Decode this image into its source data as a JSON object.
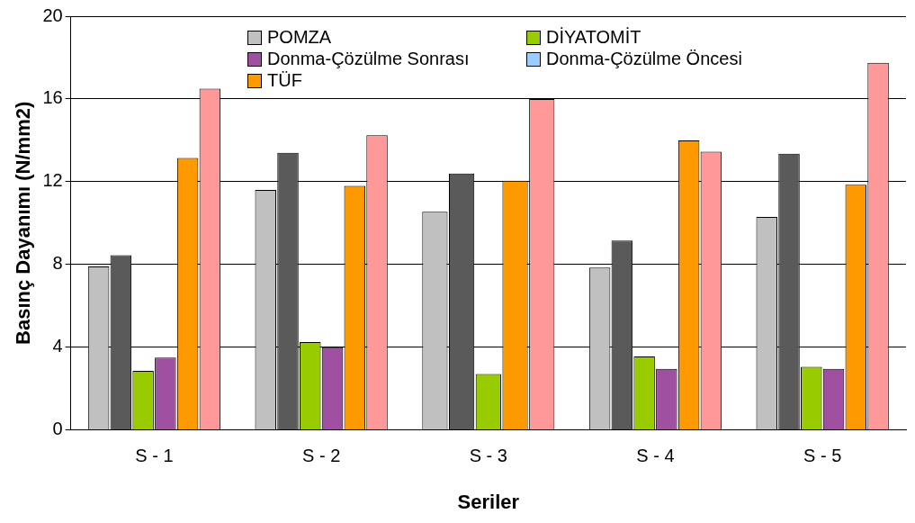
{
  "chart_data": {
    "type": "bar",
    "xlabel": "Seriler",
    "ylabel": "Basınç Dayanımı (N/mm2)",
    "categories": [
      "S - 1",
      "S - 2",
      "S - 3",
      "S - 4",
      "S - 5"
    ],
    "series": [
      {
        "name": "POMZA",
        "color": "#c0c0c0",
        "values": [
          7.9,
          11.6,
          10.55,
          7.85,
          10.3
        ]
      },
      {
        "color": "#5a5a5a",
        "values": [
          8.45,
          13.4,
          12.4,
          9.15,
          13.35
        ]
      },
      {
        "name": "DİYATOMİT",
        "color": "#99cc00",
        "values": [
          2.85,
          4.25,
          2.7,
          3.55,
          3.05
        ]
      },
      {
        "name": "Donma-Çözülme Sonrası",
        "color": "#a050a0",
        "values": [
          3.5,
          4.0,
          null,
          2.95,
          2.95
        ]
      },
      {
        "name": "Donma-Çözülme Öncesi",
        "color": "#99ccff",
        "values": [
          null,
          null,
          null,
          null,
          null
        ]
      },
      {
        "name": "TÜF",
        "color": "#ff9900",
        "values": [
          13.15,
          11.8,
          12.05,
          14.0,
          11.85
        ]
      },
      {
        "color": "#ff9999",
        "values": [
          16.5,
          14.25,
          16.0,
          13.45,
          17.75
        ]
      }
    ],
    "ylim": [
      0,
      20
    ],
    "yticks": [
      0,
      4,
      8,
      12,
      16,
      20
    ],
    "grid": "y",
    "legend": "top"
  }
}
